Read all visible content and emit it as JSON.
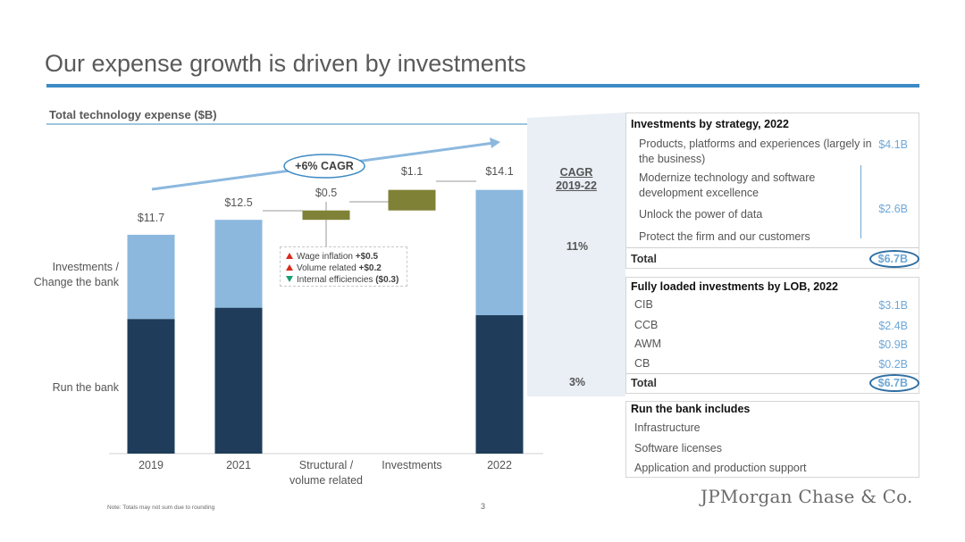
{
  "header": {
    "title": "Our expense growth is driven by investments",
    "subtitle": "Total technology expense ($B)"
  },
  "colors": {
    "run_the_bank": "#1f3d5b",
    "change_the_bank": "#8cb8de",
    "increment": "#7f8136",
    "accent": "#3b8ac4"
  },
  "chart_data": {
    "type": "bar",
    "subtype": "stacked-waterfall",
    "title": "Total technology expense ($B)",
    "categories": [
      "2019",
      "2021",
      "Structural / volume related",
      "Investments",
      "2022"
    ],
    "category_labels": [
      "2019",
      "2021",
      "Structural /\nvolume related",
      "Investments",
      "2022"
    ],
    "series": [
      {
        "name": "Run the bank",
        "values": [
          7.2,
          7.8,
          null,
          null,
          7.4
        ]
      },
      {
        "name": "Investments / Change the bank",
        "values": [
          4.5,
          4.7,
          null,
          null,
          6.7
        ]
      },
      {
        "name": "Increment",
        "values": [
          null,
          null,
          0.5,
          1.1,
          null
        ],
        "base": [
          null,
          null,
          12.5,
          13.0,
          null
        ]
      }
    ],
    "totals": [
      "$11.7",
      "$12.5",
      "$0.5",
      "$1.1",
      "$14.1"
    ],
    "ylim": [
      0,
      14.8
    ],
    "row_labels": {
      "change_the_bank": "Investments /\nChange the bank",
      "run_the_bank": "Run the bank"
    },
    "cagr_badge": "+6% CAGR",
    "cagr_header": [
      "CAGR",
      "2019-22"
    ],
    "cagr_values": {
      "change_the_bank": "11%",
      "run_the_bank": "3%"
    },
    "drivers": [
      {
        "direction": "up",
        "label": "Wage inflation ",
        "value": "+$0.5"
      },
      {
        "direction": "up",
        "label": "Volume related ",
        "value": "+$0.2"
      },
      {
        "direction": "down",
        "label": "Internal efficiencies ",
        "value": "($0.3)"
      }
    ]
  },
  "strategy_panel": {
    "title": "Investments by strategy, 2022",
    "items": [
      {
        "label": "Products, platforms and experiences (largely in the business)",
        "value": "$4.1B"
      },
      {
        "label": "Modernize technology and software development excellence"
      },
      {
        "label": "Unlock the power of data",
        "value": "$2.6B"
      },
      {
        "label": "Protect the firm and our customers"
      }
    ],
    "total_label": "Total",
    "total_value": "$6.7B"
  },
  "lob_panel": {
    "title": "Fully loaded investments by LOB, 2022",
    "items": [
      {
        "label": "CIB",
        "value": "$3.1B"
      },
      {
        "label": "CCB",
        "value": "$2.4B"
      },
      {
        "label": "AWM",
        "value": "$0.9B"
      },
      {
        "label": "CB",
        "value": "$0.2B"
      }
    ],
    "total_label": "Total",
    "total_value": "$6.7B"
  },
  "run_panel": {
    "title": "Run the bank includes",
    "items": [
      "Infrastructure",
      "Software licenses",
      "Application and production support"
    ]
  },
  "footer": {
    "note": "Note: Totals may not sum due to rounding",
    "page_number": "3",
    "logo": "JPMorgan Chase & Co."
  }
}
